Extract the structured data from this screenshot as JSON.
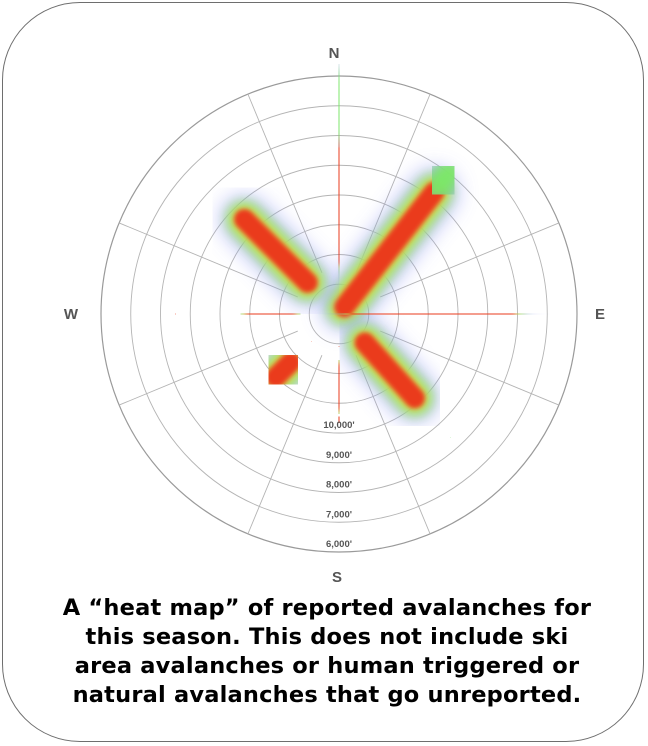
{
  "chart_data": {
    "type": "heatmap",
    "subtype": "polar-aspect-elevation",
    "directions": {
      "north": "N",
      "east": "E",
      "south": "S",
      "west": "W"
    },
    "rings": [
      "6,000'",
      "7,000'",
      "8,000'",
      "9,000'",
      "10,000'",
      "",
      "",
      ""
    ],
    "sectors": 8,
    "grid": true,
    "hotspots": [
      {
        "aspect": 0,
        "r_from": 2.0,
        "r_to": 5.7,
        "intensity": 1.0
      },
      {
        "aspect": 0,
        "r_from": 6.3,
        "r_to": 7.7,
        "intensity": 0.45
      },
      {
        "aspect": 38,
        "r_from": 0.3,
        "r_to": 5.2,
        "intensity": 1.0
      },
      {
        "aspect": 38,
        "r_from": 5.4,
        "r_to": 6.0,
        "intensity": 0.5
      },
      {
        "aspect": 90,
        "r_from": 0.7,
        "r_to": 5.6,
        "intensity": 1.0
      },
      {
        "aspect": 138,
        "r_from": 1.3,
        "r_to": 3.8,
        "intensity": 1.0
      },
      {
        "aspect": 138,
        "r_from": 5.6,
        "r_to": 5.6,
        "intensity": 0.35
      },
      {
        "aspect": 180,
        "r_from": 1.1,
        "r_to": 1.1,
        "intensity": 1.0
      },
      {
        "aspect": 180,
        "r_from": 2.0,
        "r_to": 2.9,
        "intensity": 1.0
      },
      {
        "aspect": 180,
        "r_from": 3.5,
        "r_to": 3.6,
        "intensity": 1.0
      },
      {
        "aspect": 225,
        "r_from": 1.3,
        "r_to": 1.3,
        "intensity": 1.0
      },
      {
        "aspect": 225,
        "r_from": 2.3,
        "r_to": 3.0,
        "intensity": 1.0
      },
      {
        "aspect": 270,
        "r_from": 1.8,
        "r_to": 2.8,
        "intensity": 1.0
      },
      {
        "aspect": 270,
        "r_from": 5.5,
        "r_to": 5.5,
        "intensity": 1.0
      },
      {
        "aspect": 315,
        "r_from": 1.5,
        "r_to": 4.5,
        "intensity": 1.0
      }
    ]
  },
  "caption": {
    "line1": "A “heat map” of reported avalanches for",
    "line2": "this season. This does not include ski",
    "line3": "area avalanches or human triggered or",
    "line4": "natural avalanches that go unreported."
  }
}
